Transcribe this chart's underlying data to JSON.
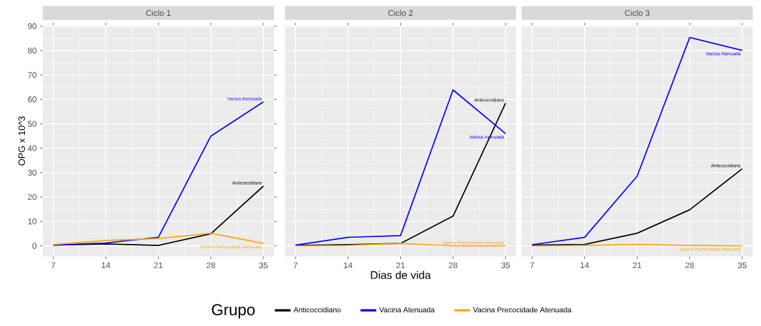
{
  "chart_data": [
    {
      "type": "line",
      "title": "Ciclo 1",
      "ylabel": "OPG x 10^3",
      "x": [
        7,
        14,
        21,
        28,
        35
      ],
      "xlim": [
        5.6,
        36.4
      ],
      "ylim": [
        -4.3,
        90.3
      ],
      "xticks": [
        7,
        14,
        21,
        28,
        35
      ],
      "yticks": [
        0,
        10,
        20,
        30,
        40,
        50,
        60,
        70,
        80,
        90
      ],
      "grid": true,
      "series": [
        {
          "name": "Anticoccidiano",
          "color": "#000000",
          "values": [
            0.3,
            0.8,
            0.2,
            5,
            24.5
          ]
        },
        {
          "name": "Vacina Atenuada",
          "color": "#0000ff",
          "values": [
            0.3,
            1.2,
            3.5,
            45,
            59
          ]
        },
        {
          "name": "Vacina Precocidade Atenuada",
          "color": "#ffa500",
          "values": [
            0.5,
            2.2,
            3,
            5.2,
            1
          ]
        }
      ]
    },
    {
      "type": "line",
      "title": "Ciclo 2",
      "xlabel": "Dias de vida",
      "legend_title": "Grupo",
      "legend": "bottom",
      "tick_labels": "x",
      "x": [
        7,
        14,
        21,
        28,
        35
      ],
      "xlim": [
        5.6,
        36.4
      ],
      "ylim": [
        -4.3,
        90.3
      ],
      "xticks": [
        7,
        14,
        21,
        28,
        35
      ],
      "yticks": [
        0,
        10,
        20,
        30,
        40,
        50,
        60,
        70,
        80,
        90
      ],
      "grid": true,
      "series": [
        {
          "name": "Anticoccidiano",
          "color": "#000000",
          "values": [
            0.2,
            0.5,
            1,
            12.2,
            58.5
          ]
        },
        {
          "name": "Vacina Atenuada",
          "color": "#0000ff",
          "values": [
            0.3,
            3.5,
            4.2,
            63.9,
            46
          ]
        },
        {
          "name": "Vacina Precocidade Atenuada",
          "color": "#ffa500",
          "values": [
            0,
            0.2,
            1,
            0,
            0
          ]
        }
      ]
    },
    {
      "type": "line",
      "title": "Ciclo 3",
      "tick_labels": "x",
      "x": [
        7,
        14,
        21,
        28,
        35
      ],
      "xlim": [
        5.6,
        36.4
      ],
      "ylim": [
        -4.3,
        90.3
      ],
      "xticks": [
        7,
        14,
        21,
        28,
        35
      ],
      "yticks": [
        0,
        10,
        20,
        30,
        40,
        50,
        60,
        70,
        80,
        90
      ],
      "grid": true,
      "series": [
        {
          "name": "Anticoccidiano",
          "color": "#000000",
          "values": [
            0.3,
            0.6,
            5.2,
            14.8,
            31.6
          ]
        },
        {
          "name": "Vacina Atenuada",
          "color": "#0000ff",
          "values": [
            0.5,
            3.5,
            28.6,
            85.4,
            80.1
          ]
        },
        {
          "name": "Vacina Precocidade Atenuada",
          "color": "#ffa500",
          "values": [
            0,
            0.2,
            0.6,
            0.2,
            0
          ]
        }
      ]
    }
  ]
}
